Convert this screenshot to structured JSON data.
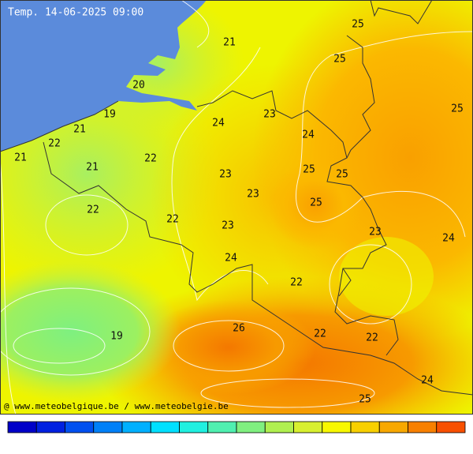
{
  "title": "Temp. 14-06-2025 09:00",
  "credit": "@ www.meteobelgique.be / www.meteobelgie.be",
  "labels": [
    25,
    21,
    25,
    20,
    25,
    19,
    23,
    24,
    21,
    24,
    22,
    21,
    22,
    21,
    25,
    25,
    23,
    23,
    25,
    22,
    22,
    23,
    23,
    24,
    24,
    22,
    26,
    19,
    22,
    22,
    24,
    25
  ]
}
